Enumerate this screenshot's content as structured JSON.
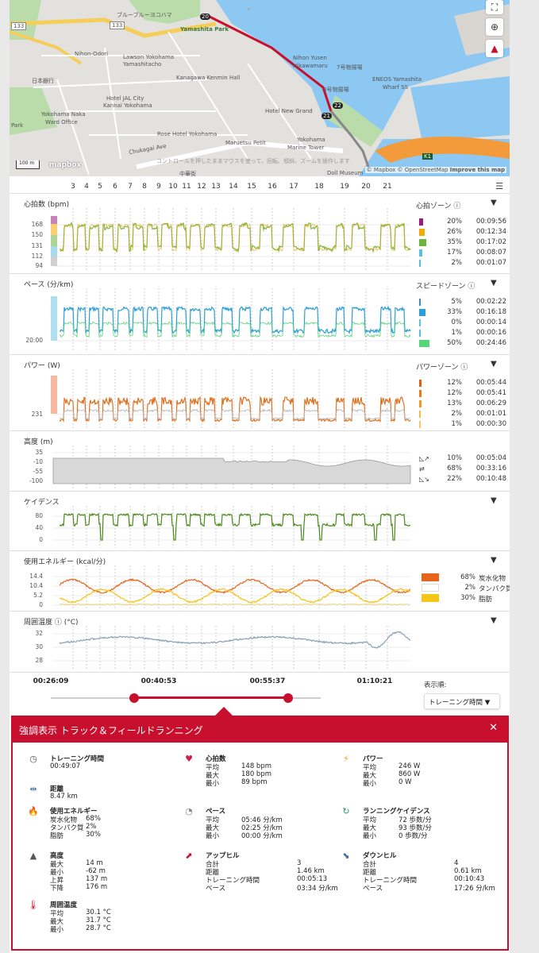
{
  "map": {
    "places": [
      {
        "id": "bluelight",
        "label": "ブルーブルーヨコハマ"
      },
      {
        "id": "yamashita",
        "label": "Yamashita Park"
      },
      {
        "id": "nihonodori",
        "label": "Nihon-Odori"
      },
      {
        "id": "route133a",
        "label": "133"
      },
      {
        "id": "route133b",
        "label": "133"
      },
      {
        "id": "lawson",
        "label": "Lawson Yokohama"
      },
      {
        "id": "lawson2",
        "label": "Yamashitacho"
      },
      {
        "id": "kanagawa",
        "label": "Kanagawa Kenmin Hall"
      },
      {
        "id": "nippon",
        "label": "日本銀行"
      },
      {
        "id": "naka",
        "label": "Yokohama Naka"
      },
      {
        "id": "naka2",
        "label": "Ward Office"
      },
      {
        "id": "jal",
        "label": "Hotel JAL City"
      },
      {
        "id": "jal2",
        "label": "Kannai Yokohama"
      },
      {
        "id": "hikawa",
        "label": "Nihon Yusen"
      },
      {
        "id": "hikawa2",
        "label": "Hikawamaru"
      },
      {
        "id": "pier",
        "label": "8号物揚場"
      },
      {
        "id": "pier7",
        "label": "7号物揚場"
      },
      {
        "id": "eneos",
        "label": "ENEOS Yamashita"
      },
      {
        "id": "eneos2",
        "label": "Wharf SS"
      },
      {
        "id": "newgrand",
        "label": "Hotel New Grand"
      },
      {
        "id": "rose",
        "label": "Rose Hotel Yokohama"
      },
      {
        "id": "maruetsu",
        "label": "Maruetsu Petit"
      },
      {
        "id": "marine",
        "label": "Yokohama"
      },
      {
        "id": "marine2",
        "label": "Marine Tower"
      },
      {
        "id": "chukagai",
        "label": "Chukagai Ave"
      },
      {
        "id": "park",
        "label": "Park"
      },
      {
        "id": "k1",
        "label": "K1"
      },
      {
        "id": "chuka",
        "label": "中華街"
      },
      {
        "id": "doll",
        "label": "Doll Museum"
      }
    ],
    "markers": [
      {
        "id": "m20",
        "label": "20"
      },
      {
        "id": "m22",
        "label": "22"
      },
      {
        "id": "m21",
        "label": "21"
      }
    ],
    "hint": "コントロールを押したままマウスを使って、回転、傾斜、ズームを操作します",
    "scale": "100 m",
    "brand": "mapbox",
    "attribution": "© Mapbox © OpenStreetMap",
    "improve": "Improve this map"
  },
  "laps": [
    "3",
    "4",
    "5",
    "6",
    "7",
    "8",
    "9",
    "10",
    "11",
    "12",
    "13",
    "14",
    "15",
    "16",
    "17",
    "18",
    "19",
    "20",
    "21"
  ],
  "panels": {
    "hr": {
      "title": "心拍数 (bpm)",
      "yticks": [
        "168",
        "150",
        "131",
        "112",
        "94"
      ],
      "zone_title": "心拍ゾーン ⓘ",
      "zones": [
        {
          "color": "#9b1d7a",
          "pct": "20%",
          "time": "00:09:56"
        },
        {
          "color": "#f2a900",
          "pct": "26%",
          "time": "00:12:34"
        },
        {
          "color": "#6cb33f",
          "pct": "35%",
          "time": "00:17:02"
        },
        {
          "color": "#5bc0de",
          "pct": "17%",
          "time": "00:08:07"
        },
        {
          "color": "#5bc0de",
          "pct": "2%",
          "time": "00:01:07"
        }
      ]
    },
    "pace": {
      "title": "ペース (分/km)",
      "yticks": [
        "20:00"
      ],
      "zone_title": "スピードゾーン ⓘ",
      "zones": [
        {
          "color": "#3a8fc2",
          "pct": "5%",
          "time": "00:02:22"
        },
        {
          "color": "#2b9ed6",
          "pct": "33%",
          "time": "00:16:18"
        },
        {
          "color": "#5bc0de",
          "pct": "0%",
          "time": "00:00:14"
        },
        {
          "color": "#5bc0de",
          "pct": "1%",
          "time": "00:00:16"
        },
        {
          "color": "#55d67a",
          "pct": "50%",
          "time": "00:24:46"
        }
      ]
    },
    "power": {
      "title": "パワー (W)",
      "yticks": [
        "231"
      ],
      "zone_title": "パワーゾーン ⓘ",
      "zones": [
        {
          "color": "#e06010",
          "pct": "12%",
          "time": "00:05:44"
        },
        {
          "color": "#e87a1a",
          "pct": "12%",
          "time": "00:05:41"
        },
        {
          "color": "#f09a2a",
          "pct": "13%",
          "time": "00:06:29"
        },
        {
          "color": "#f5b84a",
          "pct": "2%",
          "time": "00:01:01"
        },
        {
          "color": "#f5c870",
          "pct": "1%",
          "time": "00:00:30"
        }
      ]
    },
    "alt": {
      "title": "高度 (m)",
      "yticks": [
        "35",
        "-10",
        "-55",
        "-100"
      ],
      "rows": [
        {
          "icon": "up-icon",
          "pct": "10%",
          "time": "00:05:04"
        },
        {
          "icon": "flat-icon",
          "pct": "68%",
          "time": "00:33:16"
        },
        {
          "icon": "down-icon",
          "pct": "22%",
          "time": "00:10:48"
        }
      ]
    },
    "cad": {
      "title": "ケイデンス",
      "yticks": [
        "80",
        "40",
        "0"
      ]
    },
    "energy": {
      "title": "使用エネルギー (kcal/分)",
      "yticks": [
        "14.4",
        "10.4",
        "5.2",
        "0"
      ],
      "macros": [
        {
          "color": "#e8641a",
          "pct": "68%",
          "name": "炭水化物"
        },
        {
          "color": "#ffffff",
          "pct": "2%",
          "name": "タンパク質"
        },
        {
          "color": "#f5c518",
          "pct": "30%",
          "name": "脂肪"
        }
      ]
    },
    "temp": {
      "title": "周囲温度 ⓘ (°C)",
      "yticks": [
        "32",
        "30",
        "28"
      ]
    }
  },
  "timeline": {
    "labels": [
      "00:26:09",
      "00:40:53",
      "00:55:37",
      "01:10:21"
    ],
    "sort_label": "表示順:",
    "sort_value": "トレーニング時間 ▼",
    "range_start": 0.31,
    "range_end": 0.88
  },
  "summary": {
    "title": "強調表示 トラック＆フィールドランニング",
    "blocks": [
      {
        "id": "time",
        "icon": "stopwatch-icon",
        "glyph": "◷",
        "title": "トレーニング時間",
        "rows": [
          {
            "k": "00:49:07",
            "v": ""
          }
        ]
      },
      {
        "id": "dist",
        "icon": "distance-icon",
        "glyph": "⇹",
        "title": "距離",
        "rows": [
          {
            "k": "8.47 km",
            "v": ""
          }
        ]
      },
      {
        "id": "hr",
        "icon": "heart-icon",
        "glyph": "♥",
        "title": "心拍数",
        "rows": [
          {
            "k": "平均",
            "v": "148 bpm"
          },
          {
            "k": "最大",
            "v": "180 bpm"
          },
          {
            "k": "最小",
            "v": "89 bpm"
          }
        ]
      },
      {
        "id": "power",
        "icon": "bolt-icon",
        "glyph": "⚡",
        "title": "パワー",
        "rows": [
          {
            "k": "平均",
            "v": "246 W"
          },
          {
            "k": "最大",
            "v": "860 W"
          },
          {
            "k": "最小",
            "v": "0 W"
          }
        ]
      },
      {
        "id": "energy",
        "icon": "flame-icon",
        "glyph": "🔥",
        "title": "使用エネルギー",
        "rows": [
          {
            "k": "炭水化物",
            "v": "68%"
          },
          {
            "k": "タンパク質",
            "v": "2%"
          },
          {
            "k": "脂肪",
            "v": "30%"
          }
        ]
      },
      {
        "id": "pace",
        "icon": "gauge-icon",
        "glyph": "◔",
        "title": "ペース",
        "rows": [
          {
            "k": "平均",
            "v": "05:46 分/km"
          },
          {
            "k": "最大",
            "v": "02:25 分/km"
          },
          {
            "k": "最小",
            "v": "00:00 分/km"
          }
        ]
      },
      {
        "id": "cad",
        "icon": "cadence-icon",
        "glyph": "↻",
        "title": "ランニングケイデンス",
        "rows": [
          {
            "k": "平均",
            "v": "72 歩数/分"
          },
          {
            "k": "最大",
            "v": "93 歩数/分"
          },
          {
            "k": "最小",
            "v": "0 歩数/分"
          }
        ]
      },
      {
        "id": "alt",
        "icon": "mountain-icon",
        "glyph": "▲",
        "title": "高度",
        "rows": [
          {
            "k": "最大",
            "v": "14 m"
          },
          {
            "k": "最小",
            "v": "-62 m"
          },
          {
            "k": "上昇",
            "v": "137 m"
          },
          {
            "k": "下降",
            "v": "176 m"
          }
        ]
      },
      {
        "id": "uphill",
        "icon": "uphill-icon",
        "glyph": "⬈",
        "title": "アップヒル",
        "rows": [
          {
            "k": "合計",
            "v": "3"
          },
          {
            "k": "距離",
            "v": "1.46 km"
          },
          {
            "k": "トレーニング時間",
            "v": "00:05:13"
          },
          {
            "k": "ペース",
            "v": "03:34 分/km"
          }
        ]
      },
      {
        "id": "downhill",
        "icon": "downhill-icon",
        "glyph": "⬊",
        "title": "ダウンヒル",
        "rows": [
          {
            "k": "合計",
            "v": "4"
          },
          {
            "k": "距離",
            "v": "0.61 km"
          },
          {
            "k": "トレーニング時間",
            "v": "00:10:43"
          },
          {
            "k": "ペース",
            "v": "17:26 分/km"
          }
        ]
      },
      {
        "id": "temp",
        "icon": "thermometer-icon",
        "glyph": "🌡",
        "title": "周囲温度",
        "rows": [
          {
            "k": "平均",
            "v": "30.1 °C"
          },
          {
            "k": "最大",
            "v": "31.7 °C"
          },
          {
            "k": "最小",
            "v": "28.7 °C"
          }
        ]
      }
    ]
  }
}
